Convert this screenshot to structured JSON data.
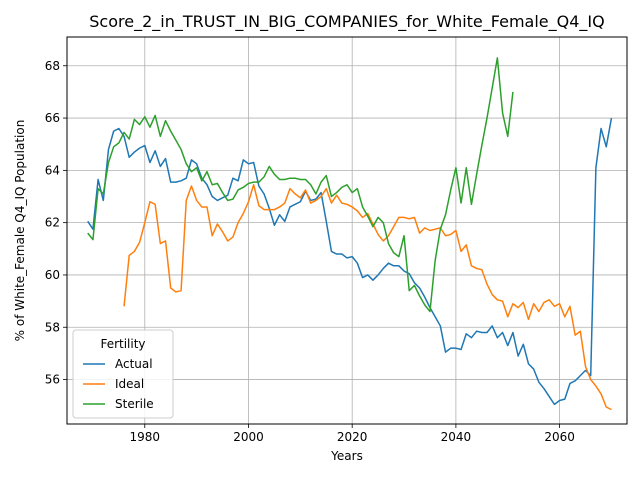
{
  "chart_data": {
    "type": "line",
    "title": "Score_2_in_TRUST_IN_BIG_COMPANIES_for_White_Female_Q4_IQ",
    "xlabel": "Years",
    "ylabel": "% of White_Female Q4_IQ Population",
    "xlim": [
      1965.0,
      2073.0
    ],
    "ylim": [
      54.3,
      69.1
    ],
    "xticks": [
      1980,
      2000,
      2020,
      2040,
      2060
    ],
    "yticks": [
      56,
      58,
      60,
      62,
      64,
      66,
      68
    ],
    "grid": true,
    "legend": {
      "title": "Fertility",
      "placement": "lower-left"
    },
    "series": [
      {
        "name": "Actual",
        "color": "#1f77b4",
        "points": [
          [
            1969,
            62.05
          ],
          [
            1970,
            61.75
          ],
          [
            1971,
            63.65
          ],
          [
            1972,
            62.85
          ],
          [
            1973,
            64.8
          ],
          [
            1974,
            65.5
          ],
          [
            1975,
            65.6
          ],
          [
            1976,
            65.3
          ],
          [
            1977,
            64.5
          ],
          [
            1978,
            64.7
          ],
          [
            1979,
            64.85
          ],
          [
            1980,
            64.95
          ],
          [
            1981,
            64.3
          ],
          [
            1982,
            64.75
          ],
          [
            1983,
            64.15
          ],
          [
            1984,
            64.45
          ],
          [
            1985,
            63.55
          ],
          [
            1986,
            63.55
          ],
          [
            1987,
            63.6
          ],
          [
            1988,
            63.7
          ],
          [
            1989,
            64.4
          ],
          [
            1990,
            64.25
          ],
          [
            1991,
            63.7
          ],
          [
            1992,
            63.45
          ],
          [
            1993,
            63.0
          ],
          [
            1994,
            62.85
          ],
          [
            1995,
            62.95
          ],
          [
            1996,
            63.05
          ],
          [
            1997,
            63.7
          ],
          [
            1998,
            63.6
          ],
          [
            1999,
            64.4
          ],
          [
            2000,
            64.25
          ],
          [
            2001,
            64.3
          ],
          [
            2002,
            63.4
          ],
          [
            2003,
            63.1
          ],
          [
            2004,
            62.55
          ],
          [
            2005,
            61.9
          ],
          [
            2006,
            62.3
          ],
          [
            2007,
            62.05
          ],
          [
            2008,
            62.6
          ],
          [
            2009,
            62.7
          ],
          [
            2010,
            62.8
          ],
          [
            2011,
            63.2
          ],
          [
            2012,
            62.85
          ],
          [
            2013,
            62.9
          ],
          [
            2014,
            63.15
          ],
          [
            2015,
            62.05
          ],
          [
            2016,
            60.9
          ],
          [
            2017,
            60.8
          ],
          [
            2018,
            60.8
          ],
          [
            2019,
            60.65
          ],
          [
            2020,
            60.7
          ],
          [
            2021,
            60.45
          ],
          [
            2022,
            59.9
          ],
          [
            2023,
            60.0
          ],
          [
            2024,
            59.8
          ],
          [
            2025,
            60.0
          ],
          [
            2026,
            60.25
          ],
          [
            2027,
            60.45
          ],
          [
            2028,
            60.35
          ],
          [
            2029,
            60.35
          ],
          [
            2030,
            60.15
          ],
          [
            2031,
            60.05
          ],
          [
            2032,
            59.7
          ],
          [
            2033,
            59.5
          ],
          [
            2034,
            59.15
          ],
          [
            2035,
            58.75
          ],
          [
            2036,
            58.4
          ],
          [
            2037,
            58.05
          ],
          [
            2038,
            57.05
          ],
          [
            2039,
            57.2
          ],
          [
            2040,
            57.2
          ],
          [
            2041,
            57.15
          ],
          [
            2042,
            57.75
          ],
          [
            2043,
            57.6
          ],
          [
            2044,
            57.85
          ],
          [
            2045,
            57.8
          ],
          [
            2046,
            57.8
          ],
          [
            2047,
            58.05
          ],
          [
            2048,
            57.6
          ],
          [
            2049,
            57.8
          ],
          [
            2050,
            57.3
          ],
          [
            2051,
            57.8
          ],
          [
            2052,
            56.9
          ],
          [
            2053,
            57.35
          ],
          [
            2054,
            56.6
          ],
          [
            2055,
            56.4
          ],
          [
            2056,
            55.9
          ],
          [
            2057,
            55.65
          ],
          [
            2058,
            55.35
          ],
          [
            2059,
            55.05
          ],
          [
            2060,
            55.2
          ],
          [
            2061,
            55.25
          ],
          [
            2062,
            55.85
          ],
          [
            2063,
            55.95
          ],
          [
            2064,
            56.15
          ],
          [
            2065,
            56.35
          ],
          [
            2066,
            56.15
          ],
          [
            2067,
            64.1
          ],
          [
            2068,
            65.6
          ],
          [
            2069,
            64.9
          ],
          [
            2070,
            66.0
          ]
        ]
      },
      {
        "name": "Ideal",
        "color": "#ff7f0e",
        "points": [
          [
            1976,
            58.8
          ],
          [
            1977,
            60.75
          ],
          [
            1978,
            60.9
          ],
          [
            1979,
            61.25
          ],
          [
            1980,
            62.0
          ],
          [
            1981,
            62.8
          ],
          [
            1982,
            62.7
          ],
          [
            1983,
            61.2
          ],
          [
            1984,
            61.3
          ],
          [
            1985,
            59.5
          ],
          [
            1986,
            59.35
          ],
          [
            1987,
            59.4
          ],
          [
            1988,
            62.85
          ],
          [
            1989,
            63.4
          ],
          [
            1990,
            62.85
          ],
          [
            1991,
            62.6
          ],
          [
            1992,
            62.6
          ],
          [
            1993,
            61.5
          ],
          [
            1994,
            61.95
          ],
          [
            1995,
            61.65
          ],
          [
            1996,
            61.3
          ],
          [
            1997,
            61.45
          ],
          [
            1998,
            62.0
          ],
          [
            1999,
            62.35
          ],
          [
            2000,
            62.8
          ],
          [
            2001,
            63.45
          ],
          [
            2002,
            62.65
          ],
          [
            2003,
            62.5
          ],
          [
            2004,
            62.5
          ],
          [
            2005,
            62.5
          ],
          [
            2006,
            62.6
          ],
          [
            2007,
            62.75
          ],
          [
            2008,
            63.3
          ],
          [
            2009,
            63.1
          ],
          [
            2010,
            62.95
          ],
          [
            2011,
            63.25
          ],
          [
            2012,
            62.75
          ],
          [
            2013,
            62.85
          ],
          [
            2014,
            63.0
          ],
          [
            2015,
            63.3
          ],
          [
            2016,
            62.75
          ],
          [
            2017,
            63.05
          ],
          [
            2018,
            62.75
          ],
          [
            2019,
            62.7
          ],
          [
            2020,
            62.6
          ],
          [
            2021,
            62.45
          ],
          [
            2022,
            62.2
          ],
          [
            2023,
            62.35
          ],
          [
            2024,
            61.95
          ],
          [
            2025,
            61.55
          ],
          [
            2026,
            61.3
          ],
          [
            2027,
            61.5
          ],
          [
            2028,
            61.85
          ],
          [
            2029,
            62.2
          ],
          [
            2030,
            62.2
          ],
          [
            2031,
            62.15
          ],
          [
            2032,
            62.2
          ],
          [
            2033,
            61.6
          ],
          [
            2034,
            61.8
          ],
          [
            2035,
            61.7
          ],
          [
            2036,
            61.75
          ],
          [
            2037,
            61.8
          ],
          [
            2038,
            61.5
          ],
          [
            2039,
            61.55
          ],
          [
            2040,
            61.7
          ],
          [
            2041,
            60.9
          ],
          [
            2042,
            61.15
          ],
          [
            2043,
            60.35
          ],
          [
            2044,
            60.25
          ],
          [
            2045,
            60.2
          ],
          [
            2046,
            59.65
          ],
          [
            2047,
            59.25
          ],
          [
            2048,
            59.05
          ],
          [
            2049,
            59.0
          ],
          [
            2050,
            58.4
          ],
          [
            2051,
            58.9
          ],
          [
            2052,
            58.75
          ],
          [
            2053,
            58.95
          ],
          [
            2054,
            58.3
          ],
          [
            2055,
            58.9
          ],
          [
            2056,
            58.6
          ],
          [
            2057,
            58.95
          ],
          [
            2058,
            59.05
          ],
          [
            2059,
            58.8
          ],
          [
            2060,
            58.9
          ],
          [
            2061,
            58.4
          ],
          [
            2062,
            58.8
          ],
          [
            2063,
            57.7
          ],
          [
            2064,
            57.85
          ],
          [
            2065,
            56.5
          ],
          [
            2066,
            56.0
          ],
          [
            2067,
            55.75
          ],
          [
            2068,
            55.45
          ],
          [
            2069,
            54.95
          ],
          [
            2070,
            54.85
          ]
        ]
      },
      {
        "name": "Sterile",
        "color": "#2ca02c",
        "points": [
          [
            1969,
            61.6
          ],
          [
            1970,
            61.35
          ],
          [
            1971,
            63.3
          ],
          [
            1972,
            63.1
          ],
          [
            1973,
            64.3
          ],
          [
            1974,
            64.9
          ],
          [
            1975,
            65.05
          ],
          [
            1976,
            65.45
          ],
          [
            1977,
            65.2
          ],
          [
            1978,
            65.95
          ],
          [
            1979,
            65.75
          ],
          [
            1980,
            66.05
          ],
          [
            1981,
            65.65
          ],
          [
            1982,
            66.1
          ],
          [
            1983,
            65.3
          ],
          [
            1984,
            65.9
          ],
          [
            1985,
            65.5
          ],
          [
            1986,
            65.15
          ],
          [
            1987,
            64.8
          ],
          [
            1988,
            64.25
          ],
          [
            1989,
            63.95
          ],
          [
            1990,
            64.1
          ],
          [
            1991,
            63.6
          ],
          [
            1992,
            63.95
          ],
          [
            1993,
            63.45
          ],
          [
            1994,
            63.5
          ],
          [
            1995,
            63.15
          ],
          [
            1996,
            62.85
          ],
          [
            1997,
            62.9
          ],
          [
            1998,
            63.25
          ],
          [
            1999,
            63.35
          ],
          [
            2000,
            63.5
          ],
          [
            2001,
            63.55
          ],
          [
            2002,
            63.55
          ],
          [
            2003,
            63.75
          ],
          [
            2004,
            64.15
          ],
          [
            2005,
            63.85
          ],
          [
            2006,
            63.65
          ],
          [
            2007,
            63.65
          ],
          [
            2008,
            63.7
          ],
          [
            2009,
            63.7
          ],
          [
            2010,
            63.65
          ],
          [
            2011,
            63.65
          ],
          [
            2012,
            63.45
          ],
          [
            2013,
            63.1
          ],
          [
            2014,
            63.55
          ],
          [
            2015,
            63.8
          ],
          [
            2016,
            63.0
          ],
          [
            2017,
            63.15
          ],
          [
            2018,
            63.35
          ],
          [
            2019,
            63.45
          ],
          [
            2020,
            63.15
          ],
          [
            2021,
            63.3
          ],
          [
            2022,
            62.6
          ],
          [
            2023,
            62.25
          ],
          [
            2024,
            61.85
          ],
          [
            2025,
            62.2
          ],
          [
            2026,
            62.0
          ],
          [
            2027,
            61.2
          ],
          [
            2028,
            60.85
          ],
          [
            2029,
            60.7
          ],
          [
            2030,
            61.5
          ],
          [
            2031,
            59.4
          ],
          [
            2032,
            59.6
          ],
          [
            2033,
            59.2
          ],
          [
            2034,
            58.85
          ],
          [
            2035,
            58.6
          ],
          [
            2036,
            60.55
          ],
          [
            2037,
            61.75
          ],
          [
            2038,
            62.3
          ],
          [
            2039,
            63.25
          ],
          [
            2040,
            64.1
          ],
          [
            2041,
            62.75
          ],
          [
            2042,
            64.1
          ],
          [
            2043,
            62.7
          ],
          [
            2044,
            63.85
          ],
          [
            2045,
            64.95
          ],
          [
            2046,
            66.0
          ],
          [
            2047,
            67.15
          ],
          [
            2048,
            68.3
          ],
          [
            2049,
            66.2
          ],
          [
            2050,
            65.3
          ],
          [
            2051,
            67.0
          ]
        ]
      }
    ]
  }
}
